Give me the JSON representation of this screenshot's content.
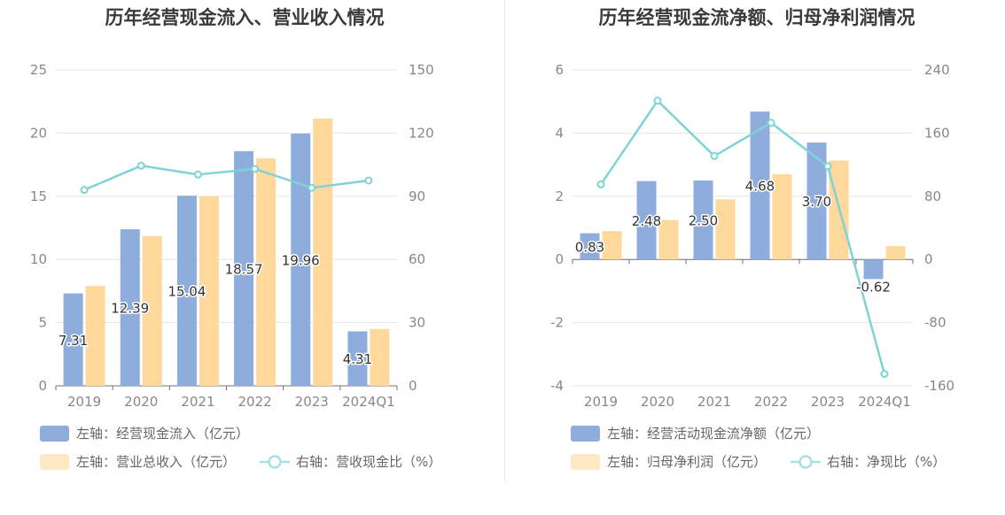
{
  "charts": [
    {
      "title": "历年经营现金流入、营业收入情况",
      "chart_data": {
        "type": "bar+line",
        "categories": [
          "2019",
          "2020",
          "2021",
          "2022",
          "2023",
          "2024Q1"
        ],
        "left_axis": {
          "min": 0,
          "max": 25,
          "ticks": [
            "0",
            "5",
            "10",
            "15",
            "20",
            "25"
          ]
        },
        "right_axis": {
          "min": 0,
          "max": 150,
          "ticks": [
            "0",
            "30",
            "60",
            "90",
            "120",
            "150"
          ]
        },
        "series": [
          {
            "name": "左轴：经营现金流入（亿元）",
            "type": "bar",
            "axis": "left",
            "color": "#8eacdc",
            "values": [
              7.31,
              12.39,
              15.04,
              18.57,
              19.96,
              4.31
            ],
            "labels": [
              "7.31",
              "12.39",
              "15.04",
              "18.57",
              "19.96",
              "4.31"
            ]
          },
          {
            "name": "左轴：营业总收入（亿元）",
            "type": "bar",
            "axis": "left",
            "color": "#ffd99b",
            "values": [
              7.9,
              11.85,
              15.0,
              18.0,
              21.15,
              4.5
            ]
          },
          {
            "name": "右轴：营收现金比（%）",
            "type": "line",
            "axis": "right",
            "color": "#7fd3d6",
            "values": [
              93,
              104.5,
              100.3,
              103,
              94,
              97.5
            ]
          }
        ]
      }
    },
    {
      "title": "历年经营现金流净额、归母净利润情况",
      "chart_data": {
        "type": "bar+line",
        "categories": [
          "2019",
          "2020",
          "2021",
          "2022",
          "2023",
          "2024Q1"
        ],
        "left_axis": {
          "min": -4,
          "max": 6,
          "ticks": [
            "-4",
            "-2",
            "0",
            "2",
            "4",
            "6"
          ]
        },
        "right_axis": {
          "min": -160,
          "max": 240,
          "ticks": [
            "-160",
            "-80",
            "0",
            "80",
            "160",
            "240"
          ]
        },
        "series": [
          {
            "name": "左轴：经营活动现金流净额（亿元）",
            "type": "bar",
            "axis": "left",
            "color": "#8eacdc",
            "values": [
              0.83,
              2.48,
              2.5,
              4.68,
              3.7,
              -0.62
            ],
            "labels": [
              "0.83",
              "2.48",
              "2.50",
              "4.68",
              "3.70",
              "-0.62"
            ]
          },
          {
            "name": "左轴：归母净利润（亿元）",
            "type": "bar",
            "axis": "left",
            "color": "#ffd99b",
            "values": [
              0.9,
              1.25,
              1.9,
              2.7,
              3.13,
              0.42
            ]
          },
          {
            "name": "右轴：净现比（%）",
            "type": "line",
            "axis": "right",
            "color": "#7fd3d6",
            "values": [
              95,
              201,
              131,
              173,
              118,
              -145
            ]
          }
        ]
      }
    }
  ]
}
